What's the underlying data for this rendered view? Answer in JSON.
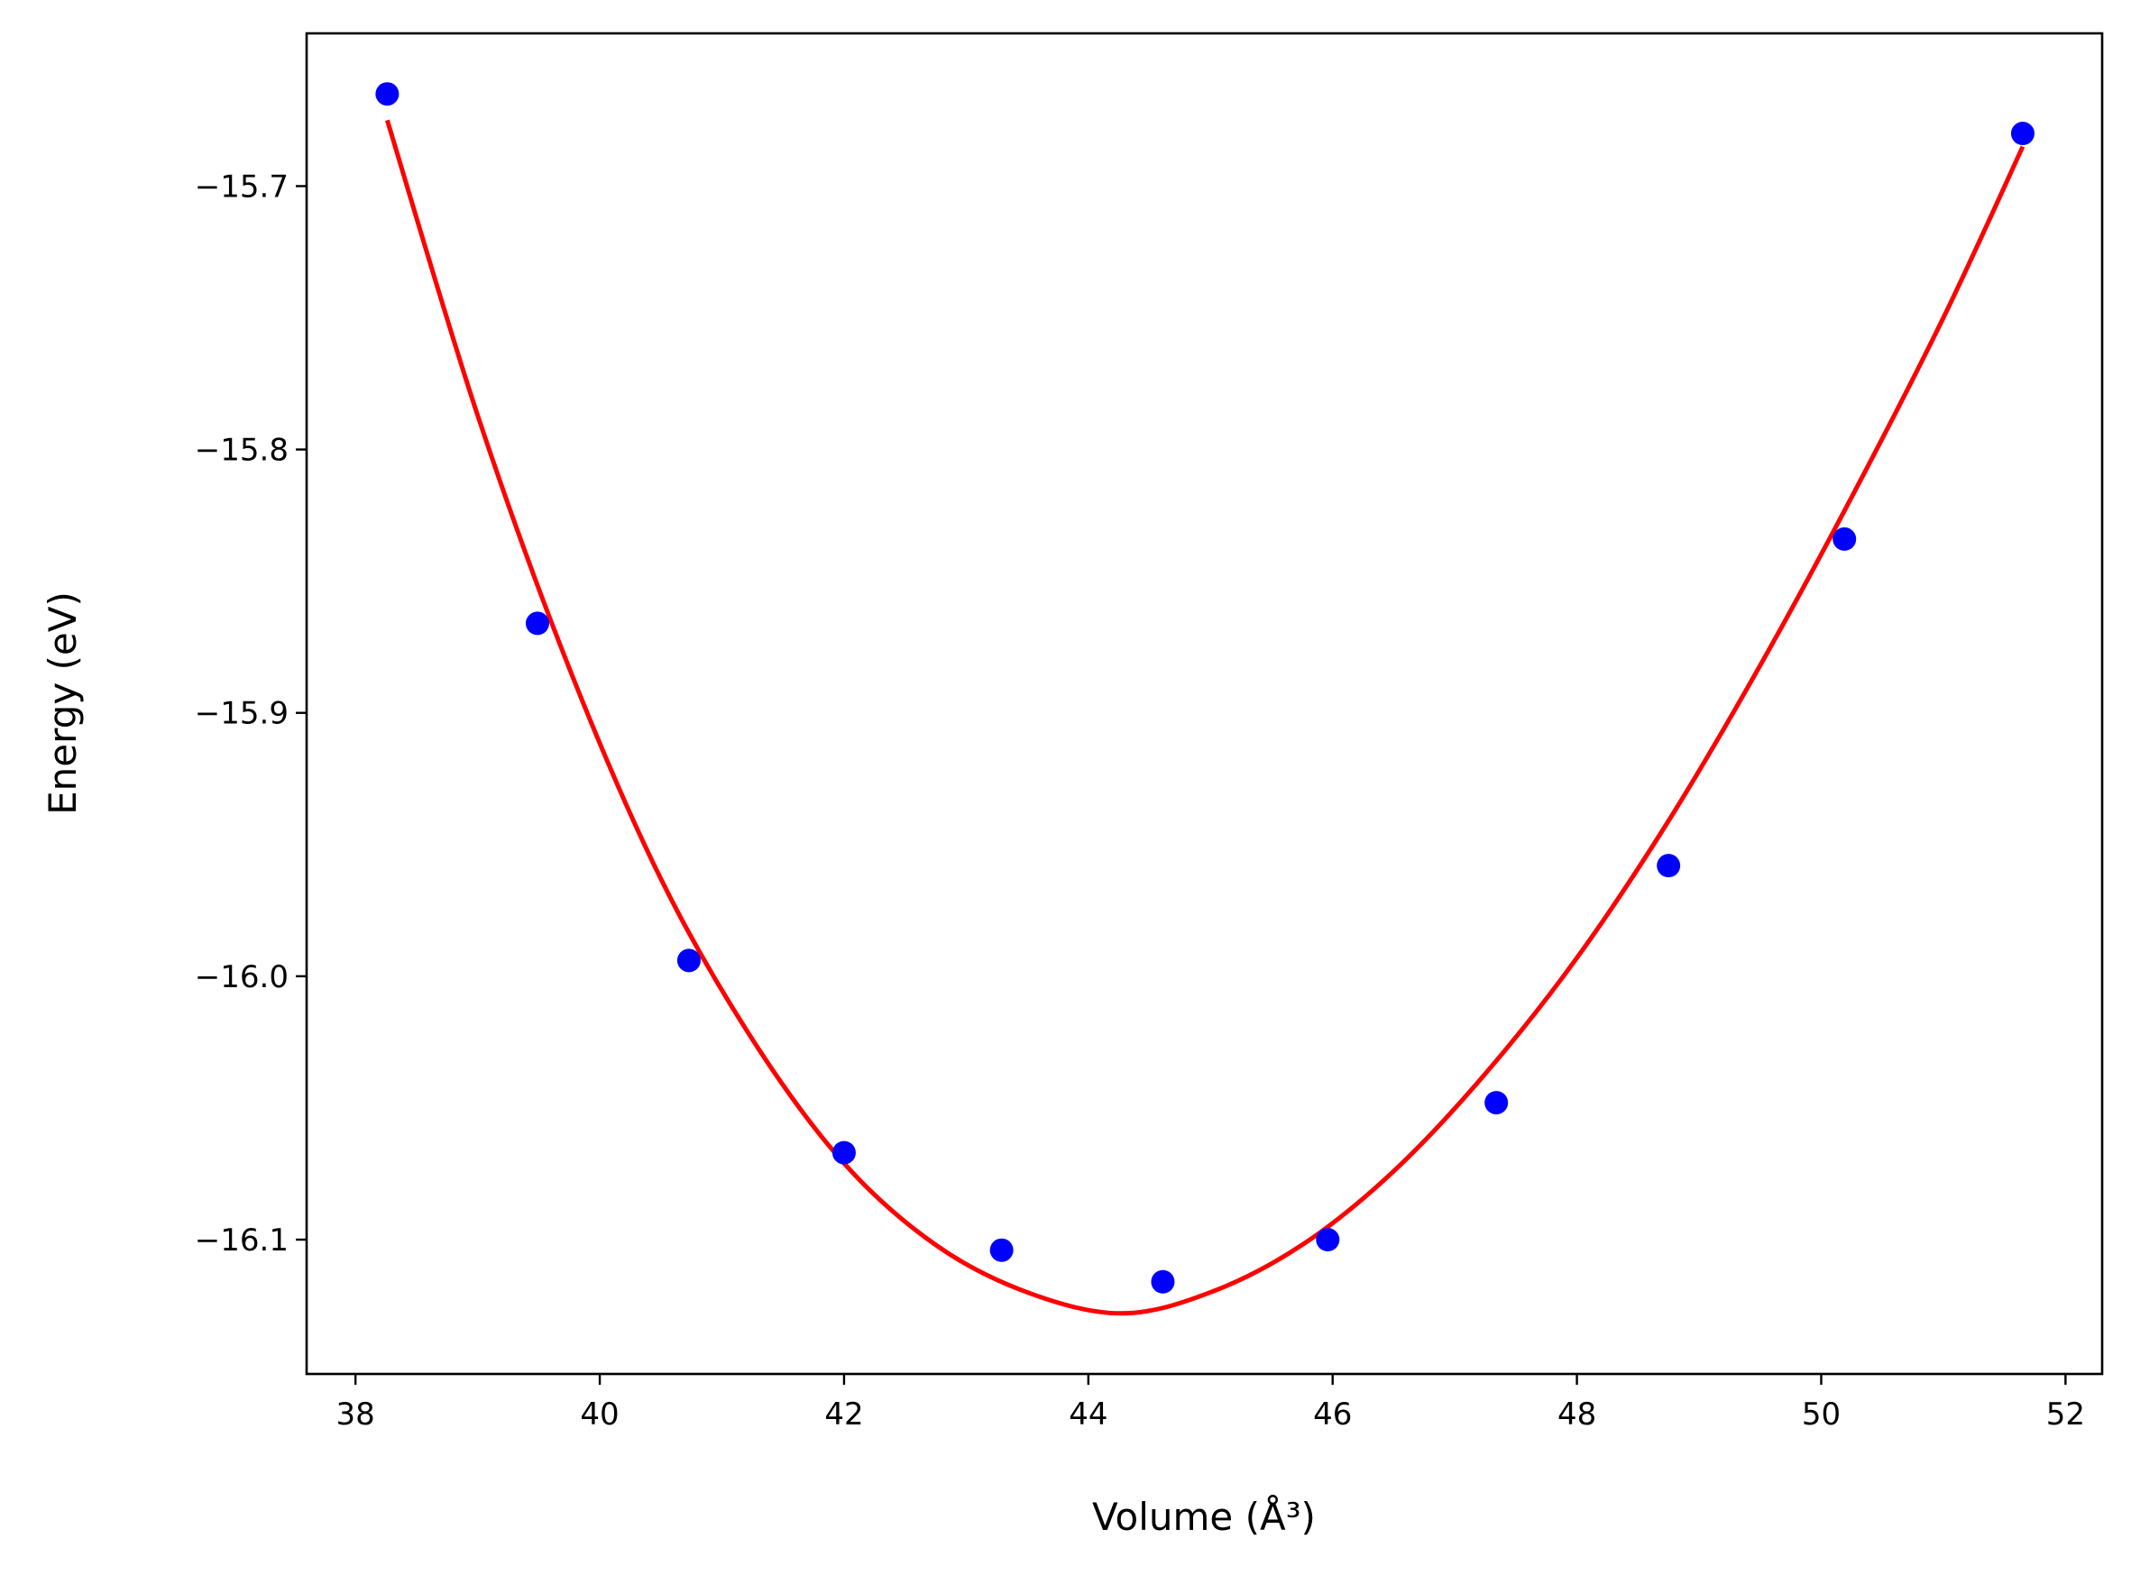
{
  "chart_data": {
    "type": "scatter",
    "title": "",
    "xlabel": "Volume (Å³)",
    "ylabel": "Energy (eV)",
    "xlim": [
      37.6,
      52.3
    ],
    "ylim": [
      -16.151,
      -15.642
    ],
    "grid": false,
    "legend": "none",
    "x_ticks": [
      38,
      40,
      42,
      44,
      46,
      48,
      50,
      52
    ],
    "y_ticks": [
      -16.1,
      -16.0,
      -15.9,
      -15.8,
      -15.7
    ],
    "x_tick_labels": [
      "38",
      "40",
      "42",
      "44",
      "46",
      "48",
      "50",
      "52"
    ],
    "y_tick_labels": [
      "−16.1",
      "−16.0",
      "−15.9",
      "−15.8",
      "−15.7"
    ],
    "series": [
      {
        "kind": "points",
        "color": "#0000ff",
        "x": [
          38.26,
          39.49,
          40.73,
          42.0,
          43.29,
          44.61,
          45.96,
          47.34,
          48.75,
          50.19,
          51.65
        ],
        "y": [
          -15.665,
          -15.866,
          -15.994,
          -16.067,
          -16.104,
          -16.116,
          -16.1,
          -16.048,
          -15.958,
          -15.834,
          -15.68
        ]
      },
      {
        "kind": "fit-line",
        "color": "#ff0000",
        "x": [
          38.26,
          39.0,
          39.75,
          40.5,
          41.25,
          42.0,
          42.75,
          43.5,
          44.27,
          45.0,
          45.75,
          46.5,
          47.25,
          48.0,
          48.75,
          49.5,
          50.25,
          51.0,
          51.65
        ],
        "y": [
          -15.675,
          -15.787,
          -15.883,
          -15.963,
          -16.024,
          -16.071,
          -16.102,
          -16.12,
          -16.128,
          -16.12,
          -16.102,
          -16.074,
          -16.037,
          -15.993,
          -15.941,
          -15.882,
          -15.818,
          -15.75,
          -15.685
        ]
      }
    ]
  }
}
